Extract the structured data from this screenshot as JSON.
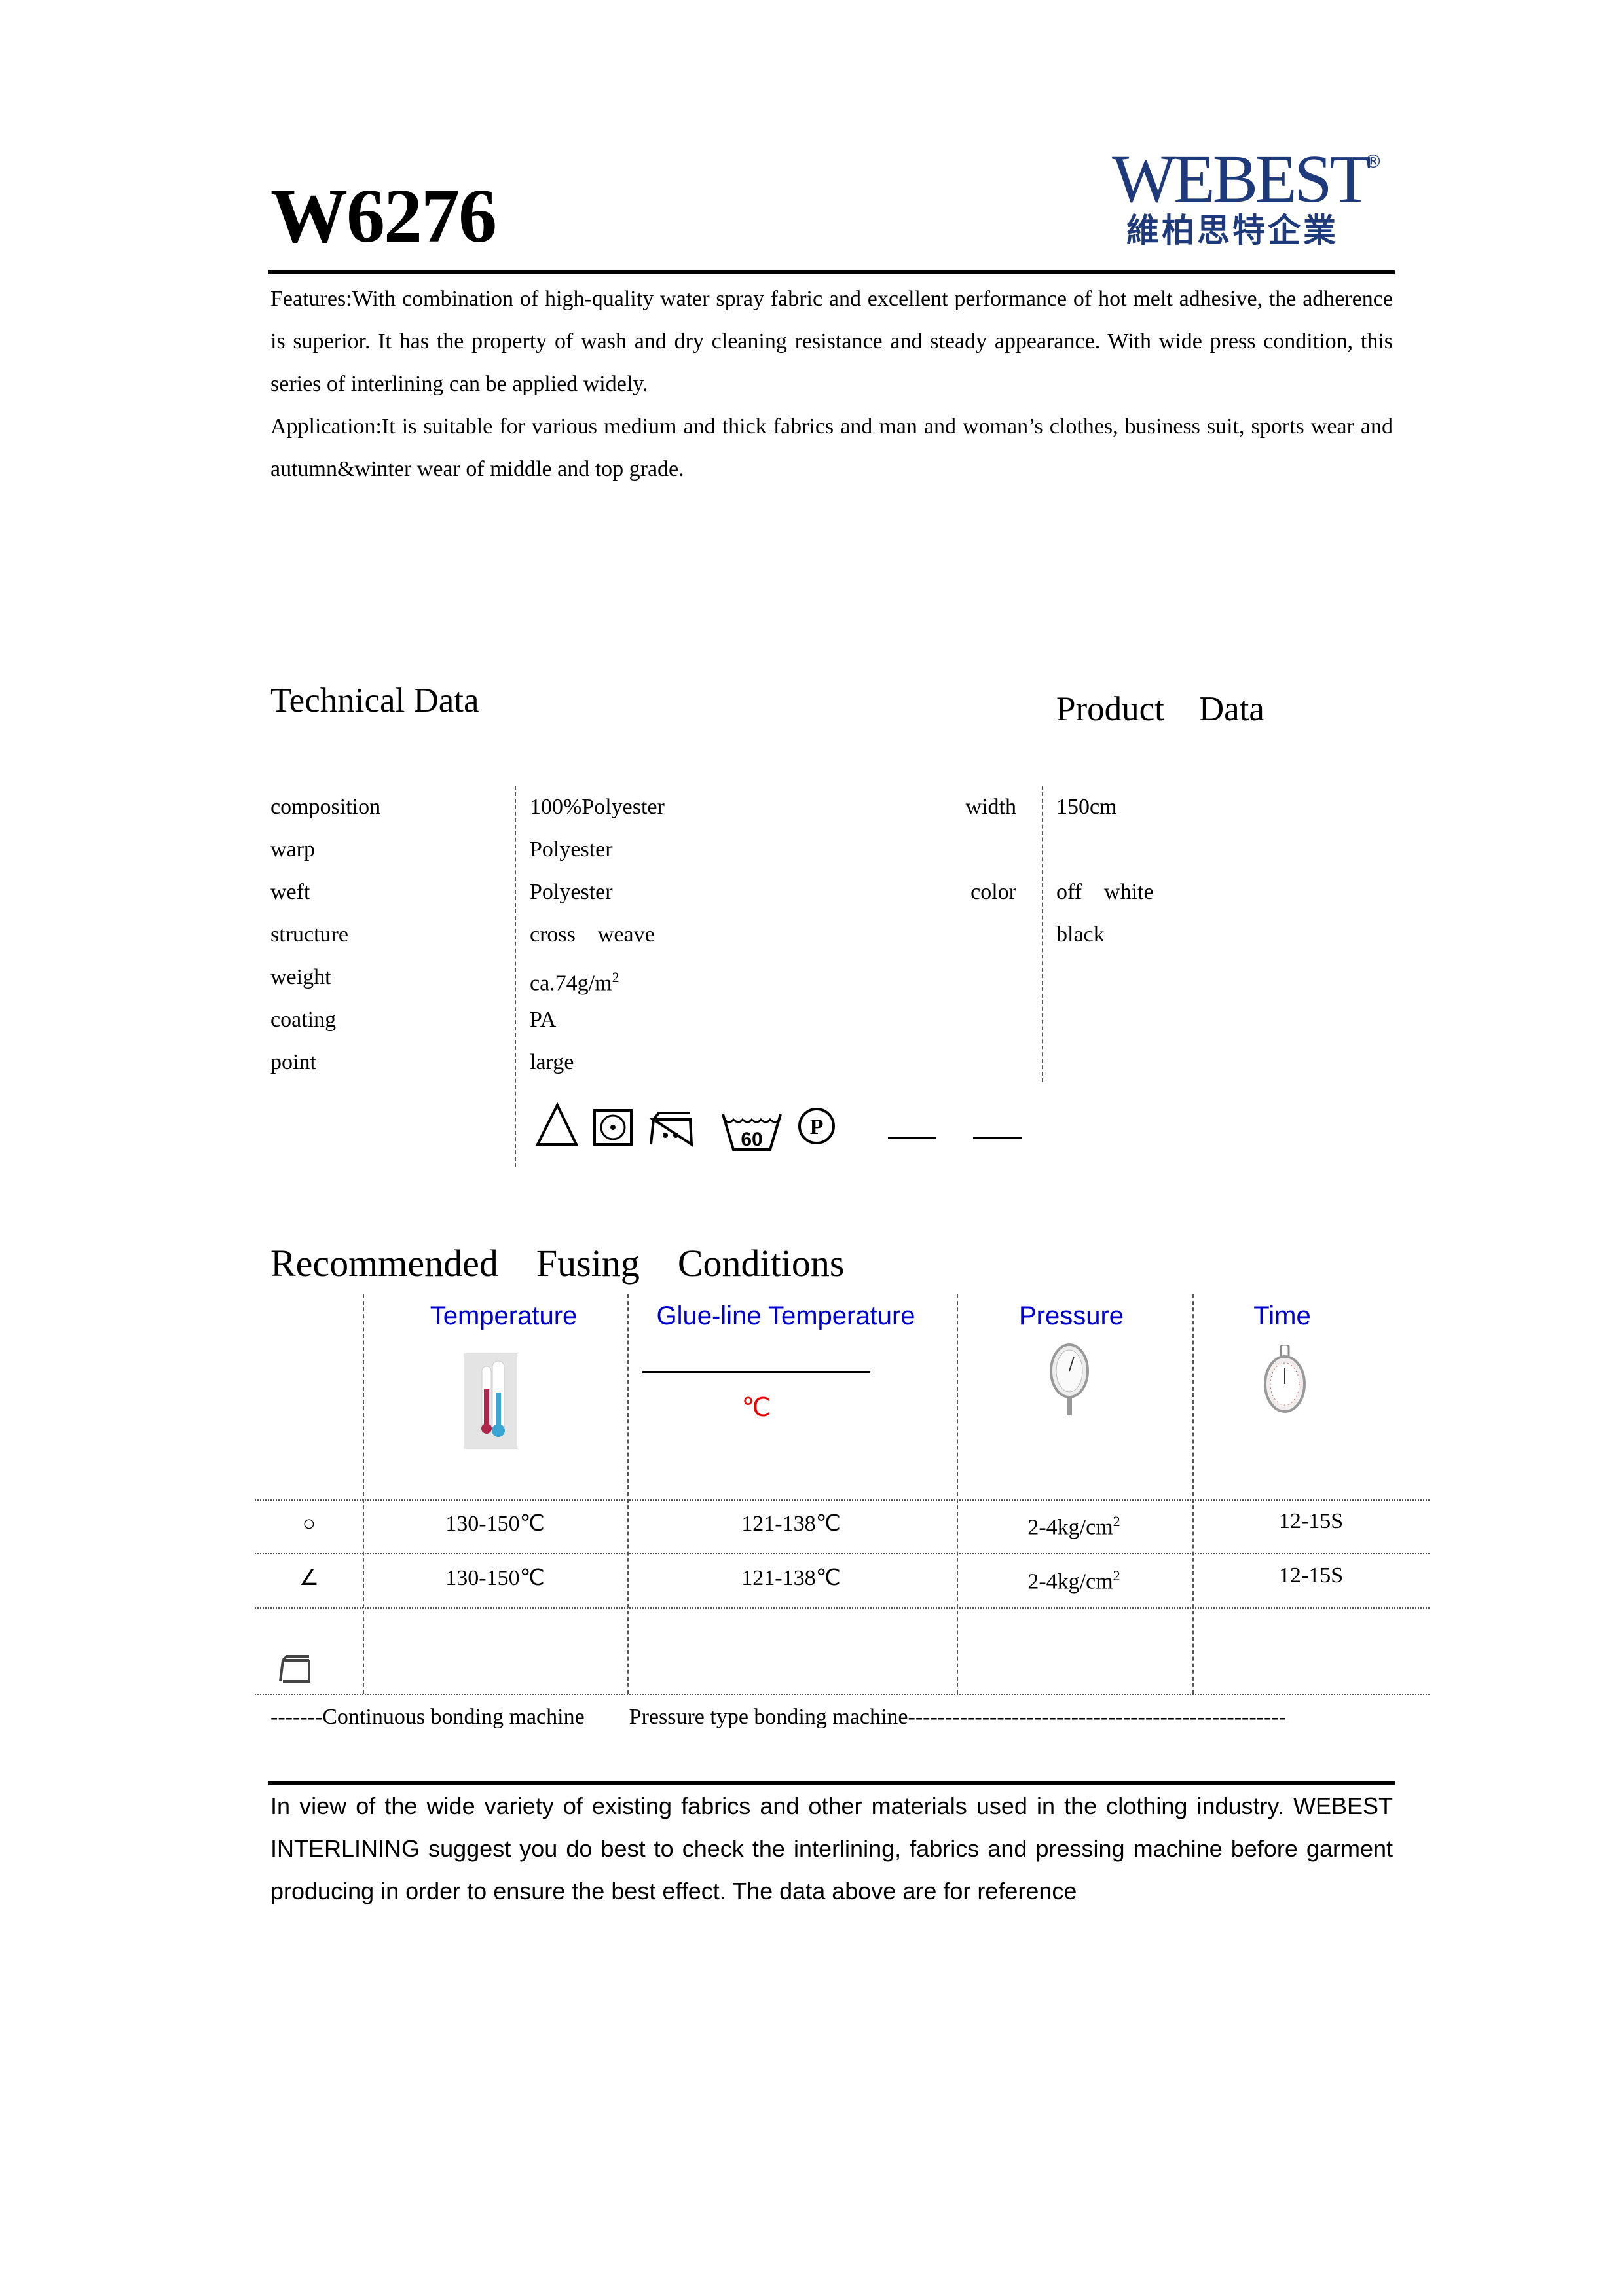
{
  "header": {
    "title": "W6276",
    "logo": {
      "text": "WEBEST",
      "reg": "®",
      "chinese": "維柏思特企業",
      "color": "#1f3a7a"
    }
  },
  "intro": {
    "features": "Features:With combination of high-quality water spray fabric and excellent performance of hot melt adhesive, the adherence is superior. It has the property of wash and dry cleaning resistance and steady appearance. With wide press condition, this series of interlining can be applied widely.",
    "application": "Application:It is suitable for various medium and thick fabrics and man and woman’s clothes, business suit, sports wear and autumn&winter wear of middle and top grade."
  },
  "technical": {
    "heading": "Technical Data",
    "rows": [
      {
        "label": "composition",
        "value": "100%Polyester"
      },
      {
        "label": "warp",
        "value": "Polyester"
      },
      {
        "label": "weft",
        "value": "Polyester"
      },
      {
        "label": "structure",
        "value": "cross　weave"
      },
      {
        "label": "weight",
        "value": "ca.74g/m",
        "sup": "2"
      },
      {
        "label": "coating",
        "value": "PA"
      },
      {
        "label": "point",
        "value": "large"
      }
    ],
    "care_icons": [
      "bleach-triangle-icon",
      "tumble-dry-icon",
      "iron-two-dots-icon",
      "wash-60-icon",
      "dry-clean-p-icon"
    ],
    "wash_temp": "60",
    "dry_clean_letter": "P"
  },
  "product": {
    "heading": "Product　Data",
    "width_label": "width",
    "width_value": "150cm",
    "color_label": "color",
    "colors": [
      "off　white",
      "black"
    ]
  },
  "fusing": {
    "heading": "Recommended　Fusing　Conditions",
    "columns": [
      "Temperature",
      "Glue-line Temperature",
      "Pressure",
      "Time"
    ],
    "glue_unit": "℃",
    "header_color": "#0000cc",
    "rows": [
      {
        "symbol": "○",
        "temperature": "130-150℃",
        "glue": "121-138℃",
        "pressure": "2-4kg/cm",
        "pressure_sup": "2",
        "time": "12-15S"
      },
      {
        "symbol": "∠",
        "temperature": "130-150℃",
        "glue": "121-138℃",
        "pressure": "2-4kg/cm",
        "pressure_sup": "2",
        "time": "12-15S"
      }
    ],
    "legend": "-------Continuous bonding machine　　Pressure type bonding machine---------------------------------------------------"
  },
  "footer": {
    "note": "In view of the wide variety of existing fabrics and other materials used in the clothing industry. WEBEST INTERLINING suggest you do best to check the interlining, fabrics and pressing machine before garment producing in order to ensure the best effect. The data above are for reference"
  }
}
